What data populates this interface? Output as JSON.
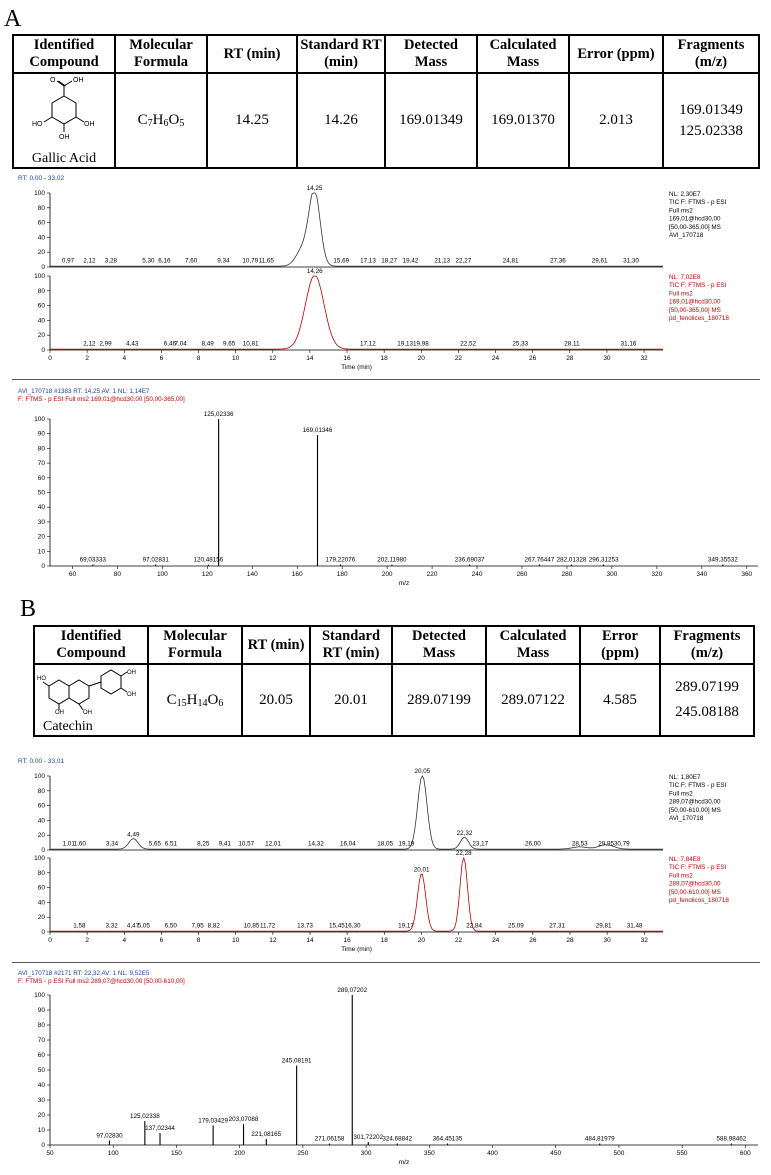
{
  "panels": [
    {
      "letter": "A",
      "table": {
        "headers": [
          "Identified Compound",
          "Molecular Formula",
          "RT (min)",
          "Standard RT (min)",
          "Detected Mass",
          "Calculated Mass",
          "Error (ppm)",
          "Fragments (m/z)"
        ],
        "compound": "Gallic Acid",
        "formula": "C7H6O5",
        "rt": "14.25",
        "std_rt": "14.26",
        "detected": "169.01349",
        "calculated": "169.01370",
        "error": "2.013",
        "fragments": [
          "169.01349",
          "125.02338"
        ]
      },
      "chromatogram": {
        "rt_label": "RT: 0,00 - 33,02",
        "xlabel": "Time (min)",
        "xticks": [
          "0",
          "2",
          "4",
          "6",
          "8",
          "10",
          "12",
          "14",
          "16",
          "18",
          "20",
          "22",
          "24",
          "26",
          "28",
          "30",
          "32"
        ],
        "yticks": [
          "0",
          "20",
          "40",
          "60",
          "80",
          "100"
        ],
        "top": {
          "info": [
            "NL: 2,30E7",
            "TIC F: FTMS - p ESI",
            "Full ms2",
            "169,01@hcd30,00",
            "[50,00-365,00]  MS",
            "AVI_170718"
          ],
          "labels": [
            [
              0.97,
              "0,97"
            ],
            [
              2.12,
              "2,12"
            ],
            [
              3.28,
              "3,28"
            ],
            [
              5.3,
              "5,30"
            ],
            [
              6.16,
              "6,16"
            ],
            [
              7.6,
              "7,60"
            ],
            [
              9.34,
              "9,34"
            ],
            [
              10.79,
              "10,79"
            ],
            [
              11.65,
              "11,65"
            ],
            [
              14.25,
              "14,25"
            ],
            [
              15.69,
              "15,69"
            ],
            [
              17.13,
              "17,13"
            ],
            [
              18.27,
              "18,27"
            ],
            [
              19.42,
              "19,42"
            ],
            [
              21.13,
              "21,13"
            ],
            [
              22.27,
              "22,27"
            ],
            [
              24.81,
              "24,81"
            ],
            [
              27.36,
              "27,36"
            ],
            [
              29.61,
              "29,61"
            ],
            [
              31.3,
              "31,30"
            ]
          ],
          "peaks": [
            [
              14.25,
              100,
              0.3
            ],
            [
              13.6,
              22,
              0.35
            ]
          ],
          "color": "#333333"
        },
        "bottom": {
          "info": [
            "NL: 7,02E8",
            "TIC F: FTMS - p ESI",
            "Full ms2",
            "169,01@hcd30,00",
            "[50,00-365,00]  MS",
            "pd_fenolicos_180718"
          ],
          "labels": [
            [
              2.12,
              "2,12"
            ],
            [
              2.99,
              "2,99"
            ],
            [
              4.43,
              "4,43"
            ],
            [
              6.46,
              "6,46"
            ],
            [
              7.04,
              "7,04"
            ],
            [
              8.49,
              "8,49"
            ],
            [
              9.65,
              "9,65"
            ],
            [
              10.81,
              "10,81"
            ],
            [
              14.26,
              "14,26"
            ],
            [
              17.12,
              "17,12"
            ],
            [
              19.13,
              "19,13"
            ],
            [
              19.98,
              "19,98"
            ],
            [
              22.52,
              "22,52"
            ],
            [
              25.33,
              "25,33"
            ],
            [
              28.11,
              "28,11"
            ],
            [
              31.16,
              "31,16"
            ]
          ],
          "peaks": [
            [
              14.26,
              100,
              0.5
            ]
          ],
          "color": "#c00000"
        },
        "xlim": [
          0,
          33.02
        ]
      },
      "spectrum": {
        "header1": "AVI_170718 #1383  RT: 14,25  AV: 1  NL: 1,14E7",
        "header2": "F: FTMS - p ESI Full ms2 169,01@hcd30,00 [50,00-365,00]",
        "xlabel": "m/z",
        "xlim": [
          50,
          365
        ],
        "xticks": [
          "60",
          "80",
          "100",
          "120",
          "140",
          "160",
          "180",
          "200",
          "220",
          "240",
          "260",
          "280",
          "300",
          "320",
          "340",
          "360"
        ],
        "yticks": [
          "0",
          "10",
          "20",
          "30",
          "40",
          "50",
          "60",
          "70",
          "80",
          "90",
          "100"
        ],
        "lines": [
          [
            125.02336,
            100,
            "125,02336"
          ],
          [
            169.01346,
            89,
            "169,01346"
          ],
          [
            69.03333,
            1,
            "69,03333"
          ],
          [
            97.02831,
            1,
            "97,02831"
          ],
          [
            120.48156,
            1,
            "120,48156"
          ],
          [
            179.22076,
            1,
            "179,22076"
          ],
          [
            202.1198,
            1,
            "202,11980"
          ],
          [
            236.69037,
            1,
            "236,69037"
          ],
          [
            267.76447,
            1,
            "267,76447"
          ],
          [
            282.01328,
            1,
            "282,01328"
          ],
          [
            296.31253,
            1,
            "296,31253"
          ],
          [
            349.35532,
            1,
            "349,35532"
          ]
        ]
      }
    },
    {
      "letter": "B",
      "table": {
        "headers": [
          "Identified Compound",
          "Molecular Formula",
          "RT (min)",
          "Standard RT (min)",
          "Detected Mass",
          "Calculated Mass",
          "Error (ppm)",
          "Fragments (m/z)"
        ],
        "compound": "Catechin",
        "formula": "C15H14O6",
        "rt": "20.05",
        "std_rt": "20.01",
        "detected": "289.07199",
        "calculated": "289.07122",
        "error": "4.585",
        "fragments": [
          "289.07199",
          "245.08188"
        ]
      },
      "chromatogram": {
        "rt_label": "RT: 0,00 - 33,01",
        "xlabel": "Time (min)",
        "xticks": [
          "0",
          "2",
          "4",
          "6",
          "8",
          "10",
          "12",
          "14",
          "16",
          "18",
          "20",
          "22",
          "24",
          "26",
          "28",
          "30",
          "32"
        ],
        "yticks": [
          "0",
          "20",
          "40",
          "60",
          "80",
          "100"
        ],
        "top": {
          "info": [
            "NL: 1,80E7",
            "TIC F: FTMS - p ESI",
            "Full ms2",
            "289,07@hcd30,00",
            "[50,00-610,00]  MS",
            "AVI_170718"
          ],
          "labels": [
            [
              1.01,
              "1,01"
            ],
            [
              1.6,
              "1,60"
            ],
            [
              3.34,
              "3,34"
            ],
            [
              4.49,
              "4,49"
            ],
            [
              5.65,
              "5,65"
            ],
            [
              6.51,
              "6,51"
            ],
            [
              8.25,
              "8,25"
            ],
            [
              9.41,
              "9,41"
            ],
            [
              10.57,
              "10,57"
            ],
            [
              12.01,
              "12,01"
            ],
            [
              14.32,
              "14,32"
            ],
            [
              16.04,
              "16,04"
            ],
            [
              18.05,
              "18,05"
            ],
            [
              19.19,
              "19,19"
            ],
            [
              20.05,
              "20,05"
            ],
            [
              22.32,
              "22,32"
            ],
            [
              23.17,
              "23,17"
            ],
            [
              26.0,
              "26,00"
            ],
            [
              28.53,
              "28,53"
            ],
            [
              29.95,
              "29,95"
            ],
            [
              30.79,
              "30,79"
            ]
          ],
          "peaks": [
            [
              20.05,
              100,
              0.25
            ],
            [
              22.32,
              16,
              0.22
            ],
            [
              4.49,
              14,
              0.25
            ],
            [
              29.95,
              6,
              0.4
            ],
            [
              28.53,
              3,
              0.4
            ]
          ],
          "color": "#333333"
        },
        "bottom": {
          "info": [
            "NL: 7,84E8",
            "TIC F: FTMS - p ESI",
            "Full ms2",
            "289,07@hcd30,00",
            "[50,00-610,00]  MS",
            "pd_fenolicos_180718"
          ],
          "labels": [
            [
              1.58,
              "1,58"
            ],
            [
              3.32,
              "3,32"
            ],
            [
              4.47,
              "4,47"
            ],
            [
              5.05,
              "5,05"
            ],
            [
              6.5,
              "6,50"
            ],
            [
              7.95,
              "7,95"
            ],
            [
              8.82,
              "8,82"
            ],
            [
              10.85,
              "10,85"
            ],
            [
              11.72,
              "11,72"
            ],
            [
              13.73,
              "13,73"
            ],
            [
              15.45,
              "15,45"
            ],
            [
              16.3,
              "16,30"
            ],
            [
              19.17,
              "19,17"
            ],
            [
              20.01,
              "20,01"
            ],
            [
              22.28,
              "22,28"
            ],
            [
              22.84,
              "22,84"
            ],
            [
              25.09,
              "25,09"
            ],
            [
              27.31,
              "27,31"
            ],
            [
              29.81,
              "29,81"
            ],
            [
              31.48,
              "31,48"
            ]
          ],
          "peaks": [
            [
              20.01,
              78,
              0.22
            ],
            [
              22.28,
              100,
              0.2
            ]
          ],
          "color": "#c00000"
        },
        "xlim": [
          0,
          33.01
        ]
      },
      "spectrum": {
        "header1": "AVI_170718 #2171  RT: 22,32  AV: 1  NL: 9,52E5",
        "header2": "F: FTMS - p ESI Full ms2 289,07@hcd30,00 [50,00-610,00]",
        "xlabel": "m/z",
        "xlim": [
          50,
          610
        ],
        "xticks": [
          "50",
          "100",
          "150",
          "200",
          "250",
          "300",
          "350",
          "400",
          "450",
          "500",
          "550",
          "600"
        ],
        "yticks": [
          "0",
          "10",
          "20",
          "30",
          "40",
          "50",
          "60",
          "70",
          "80",
          "90",
          "100"
        ],
        "lines": [
          [
            289.07202,
            100,
            "289,07202"
          ],
          [
            245.08191,
            53,
            "245,08191"
          ],
          [
            125.02338,
            16,
            "125,02338"
          ],
          [
            179.03429,
            13,
            "179,03429"
          ],
          [
            203.07088,
            14,
            "203,07088"
          ],
          [
            137.02344,
            8,
            "137,02344"
          ],
          [
            221.08165,
            4,
            "221,08165"
          ],
          [
            97.0283,
            3,
            "97,02830"
          ],
          [
            271.06158,
            1,
            "271,06158"
          ],
          [
            301.72202,
            2,
            "301,72202"
          ],
          [
            324.68842,
            1,
            "324,68842"
          ],
          [
            364.45135,
            1,
            "364,45135"
          ],
          [
            484.81979,
            1,
            "484,81979"
          ],
          [
            588.98462,
            1,
            "588,98462"
          ]
        ]
      }
    }
  ],
  "chart_data": [
    {
      "type": "line",
      "title": "",
      "xlabel": "Time (min)",
      "ylabel": "",
      "xlim": [
        0,
        33.02
      ],
      "ylim": [
        0,
        100
      ],
      "series": [
        {
          "name": "AVI_170718",
          "peaks": [
            {
              "x": 14.25,
              "y": 100
            }
          ]
        },
        {
          "name": "pd_fenolicos_180718",
          "peaks": [
            {
              "x": 14.26,
              "y": 100
            }
          ]
        }
      ]
    },
    {
      "type": "bar",
      "title": "",
      "xlabel": "m/z",
      "xlim": [
        50,
        365
      ],
      "ylim": [
        0,
        100
      ],
      "x": [
        125.02336,
        169.01346
      ],
      "values": [
        100,
        89
      ]
    },
    {
      "type": "line",
      "title": "",
      "xlabel": "Time (min)",
      "xlim": [
        0,
        33.01
      ],
      "ylim": [
        0,
        100
      ],
      "series": [
        {
          "name": "AVI_170718",
          "peaks": [
            {
              "x": 20.05,
              "y": 100
            },
            {
              "x": 22.32,
              "y": 16
            },
            {
              "x": 4.49,
              "y": 14
            }
          ]
        },
        {
          "name": "pd_fenolicos_180718",
          "peaks": [
            {
              "x": 20.01,
              "y": 78
            },
            {
              "x": 22.28,
              "y": 100
            }
          ]
        }
      ]
    },
    {
      "type": "bar",
      "title": "",
      "xlabel": "m/z",
      "xlim": [
        50,
        610
      ],
      "ylim": [
        0,
        100
      ],
      "x": [
        289.07202,
        245.08191,
        125.02338,
        179.03429,
        203.07088,
        137.02344
      ],
      "values": [
        100,
        53,
        16,
        13,
        14,
        8
      ]
    }
  ]
}
